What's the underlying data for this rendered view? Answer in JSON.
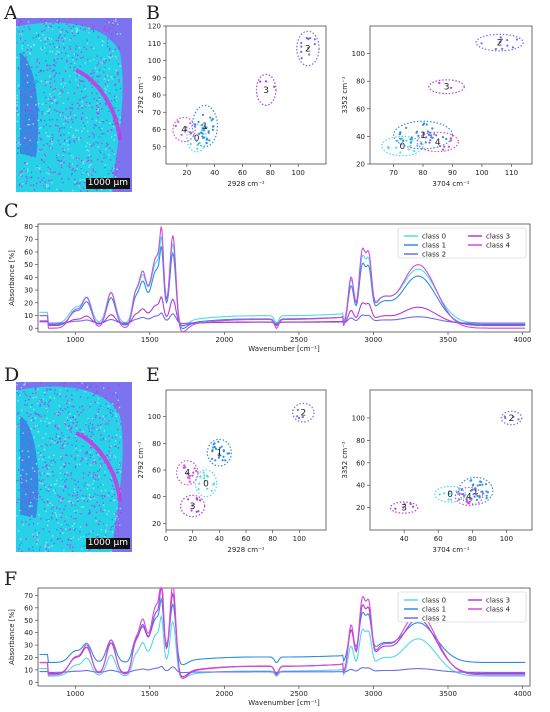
{
  "panels": {
    "A": "A",
    "B": "B",
    "C": "C",
    "D": "D",
    "E": "E",
    "F": "F"
  },
  "micrograph": {
    "scale_label": "1000 µm",
    "colors": {
      "background": "#7c73ee",
      "tissue": "#27d2e8",
      "class_magenta": "#d42ce0",
      "class_blue": "#3c78e0"
    }
  },
  "classes": {
    "labels": [
      "0",
      "1",
      "2",
      "3",
      "4"
    ],
    "legend": [
      "class 0",
      "class 1",
      "class 2",
      "class 3",
      "class 4"
    ],
    "colors": [
      "#52d8ea",
      "#2f8fde",
      "#6e6fe8",
      "#b13bd9",
      "#d24bd8"
    ]
  },
  "chart_data": [
    {
      "id": "B-left",
      "type": "scatter",
      "xlabel": "2928 cm⁻¹",
      "ylabel": "2792 cm⁻¹",
      "xlim": [
        5,
        120
      ],
      "ylim": [
        40,
        120
      ],
      "xticks": [
        20,
        40,
        60,
        80,
        100
      ],
      "yticks": [
        50,
        60,
        70,
        80,
        90,
        100,
        110,
        120
      ],
      "clusters": [
        {
          "label": "0",
          "cx": 27,
          "cy": 55,
          "rx": 7,
          "ry": 8,
          "n": 8
        },
        {
          "label": "1",
          "cx": 33,
          "cy": 62,
          "rx": 9,
          "ry": 12,
          "n": 26
        },
        {
          "label": "2",
          "cx": 107,
          "cy": 107,
          "rx": 8,
          "ry": 10,
          "n": 12
        },
        {
          "label": "3",
          "cx": 77,
          "cy": 83,
          "rx": 7,
          "ry": 9,
          "n": 3
        },
        {
          "label": "4",
          "cx": 18,
          "cy": 60,
          "rx": 8,
          "ry": 7,
          "n": 8
        }
      ]
    },
    {
      "id": "B-right",
      "type": "scatter",
      "xlabel": "3704 cm⁻¹",
      "ylabel": "3352 cm⁻¹",
      "xlim": [
        62,
        117
      ],
      "ylim": [
        20,
        120
      ],
      "xticks": [
        70,
        80,
        90,
        100,
        110
      ],
      "yticks": [
        20,
        40,
        60,
        80,
        100
      ],
      "clusters": [
        {
          "label": "0",
          "cx": 73,
          "cy": 33,
          "rx": 7,
          "ry": 7,
          "n": 14
        },
        {
          "label": "1",
          "cx": 80,
          "cy": 41,
          "rx": 10,
          "ry": 10,
          "n": 30
        },
        {
          "label": "2",
          "cx": 106,
          "cy": 108,
          "rx": 8,
          "ry": 6,
          "n": 10
        },
        {
          "label": "3",
          "cx": 88,
          "cy": 76,
          "rx": 6,
          "ry": 5,
          "n": 2
        },
        {
          "label": "4",
          "cx": 85,
          "cy": 36,
          "rx": 7,
          "ry": 7,
          "n": 10
        }
      ]
    },
    {
      "id": "E-left",
      "type": "scatter",
      "xlabel": "2928 cm⁻¹",
      "ylabel": "2792 cm⁻¹",
      "xlim": [
        0,
        120
      ],
      "ylim": [
        15,
        120
      ],
      "xticks": [
        0,
        20,
        40,
        60,
        80,
        100
      ],
      "yticks": [
        20,
        40,
        60,
        80,
        100
      ],
      "clusters": [
        {
          "label": "0",
          "cx": 30,
          "cy": 50,
          "rx": 8,
          "ry": 10,
          "n": 14
        },
        {
          "label": "1",
          "cx": 40,
          "cy": 73,
          "rx": 9,
          "ry": 10,
          "n": 22
        },
        {
          "label": "2",
          "cx": 103,
          "cy": 103,
          "rx": 8,
          "ry": 7,
          "n": 4
        },
        {
          "label": "3",
          "cx": 20,
          "cy": 33,
          "rx": 9,
          "ry": 8,
          "n": 8
        },
        {
          "label": "4",
          "cx": 16,
          "cy": 58,
          "rx": 8,
          "ry": 9,
          "n": 12
        }
      ]
    },
    {
      "id": "E-right",
      "type": "scatter",
      "xlabel": "3704 cm⁻¹",
      "ylabel": "3352 cm⁻¹",
      "xlim": [
        20,
        115
      ],
      "ylim": [
        0,
        125
      ],
      "xticks": [
        40,
        60,
        80,
        100
      ],
      "yticks": [
        20,
        40,
        60,
        80,
        100
      ],
      "clusters": [
        {
          "label": "0",
          "cx": 67,
          "cy": 32,
          "rx": 9,
          "ry": 7,
          "n": 10
        },
        {
          "label": "1",
          "cx": 82,
          "cy": 35,
          "rx": 10,
          "ry": 12,
          "n": 30
        },
        {
          "label": "2",
          "cx": 103,
          "cy": 100,
          "rx": 6,
          "ry": 6,
          "n": 4
        },
        {
          "label": "3",
          "cx": 40,
          "cy": 20,
          "rx": 8,
          "ry": 5,
          "n": 5
        },
        {
          "label": "4",
          "cx": 78,
          "cy": 30,
          "rx": 8,
          "ry": 8,
          "n": 10
        }
      ]
    },
    {
      "id": "C",
      "type": "line",
      "xlabel": "Wavenumber [cm⁻¹]",
      "ylabel": "Absorbance [%]",
      "xlim": [
        750,
        4050
      ],
      "ylim": [
        -3,
        82
      ],
      "xticks": [
        1000,
        1500,
        2000,
        2500,
        3000,
        3500,
        4000
      ],
      "yticks": [
        0,
        10,
        20,
        30,
        40,
        50,
        60,
        70,
        80
      ],
      "legend_position": "top-right",
      "series": [
        {
          "name": "class 0",
          "scale": 0.85,
          "baseline": 4
        },
        {
          "name": "class 1",
          "scale": 0.78,
          "baseline": 2
        },
        {
          "name": "class 2",
          "scale": 0.1,
          "baseline": 4
        },
        {
          "name": "class 3",
          "scale": 0.27,
          "baseline": 3
        },
        {
          "name": "class 4",
          "scale": 1.0,
          "baseline": 0
        }
      ]
    },
    {
      "id": "F",
      "type": "line",
      "xlabel": "Wavenumber [cm⁻¹]",
      "ylabel": "Absorbance [%]",
      "xlim": [
        750,
        4050
      ],
      "ylim": [
        -3,
        76
      ],
      "xticks": [
        1000,
        1500,
        2000,
        2500,
        3000,
        3500,
        4000
      ],
      "yticks": [
        0,
        10,
        20,
        30,
        40,
        50,
        60,
        70
      ],
      "legend_position": "top-right",
      "series": [
        {
          "name": "class 0",
          "scale": 0.6,
          "baseline": 5
        },
        {
          "name": "class 1",
          "scale": 0.64,
          "baseline": 16
        },
        {
          "name": "class 2",
          "scale": 0.06,
          "baseline": 8
        },
        {
          "name": "class 3",
          "scale": 0.88,
          "baseline": 7
        },
        {
          "name": "class 4",
          "scale": 1.0,
          "baseline": 6
        }
      ]
    }
  ]
}
